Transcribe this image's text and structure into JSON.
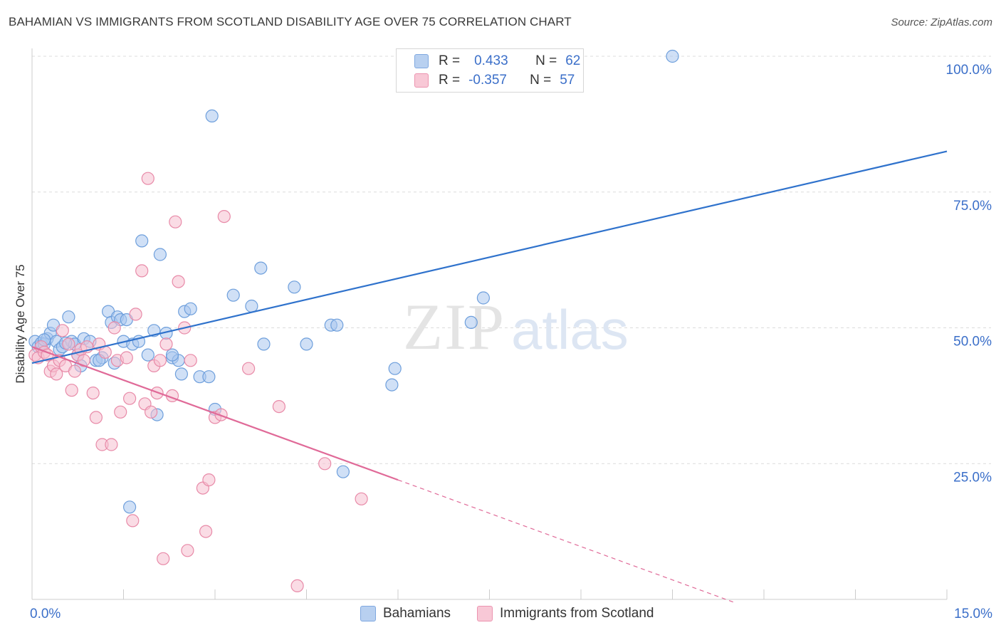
{
  "title": "BAHAMIAN VS IMMIGRANTS FROM SCOTLAND DISABILITY AGE OVER 75 CORRELATION CHART",
  "source": "Source: ZipAtlas.com",
  "watermark": {
    "zip": "ZIP",
    "atlas": "atlas"
  },
  "legend": {
    "r_label": "R =",
    "n_label": "N =",
    "rows": [
      {
        "r": "0.433",
        "n": "62",
        "fill": "#b8d0f0",
        "stroke": "#7fa8e0"
      },
      {
        "r": "-0.357",
        "n": "57",
        "fill": "#f8c8d6",
        "stroke": "#ec94b0"
      }
    ]
  },
  "colors": {
    "blue_fill": "#a9c6ee",
    "blue_stroke": "#6e9fdc",
    "blue_line": "#2f72cc",
    "pink_fill": "#f6bfd0",
    "pink_stroke": "#e88aa8",
    "pink_line": "#e06a98",
    "axis_text": "#3b6fc9",
    "grid": "#dcdcdc"
  },
  "chart_data": {
    "type": "scatter",
    "xlabel": "",
    "ylabel": "Disability Age Over 75",
    "xlim": [
      0,
      15
    ],
    "ylim": [
      0,
      100
    ],
    "x_tick_labels": [
      "0.0%",
      "15.0%"
    ],
    "y_ticks": [
      {
        "value": 25,
        "label": "25.0%"
      },
      {
        "value": 50,
        "label": "50.0%"
      },
      {
        "value": 75,
        "label": "75.0%"
      },
      {
        "value": 100,
        "label": "100.0%"
      }
    ],
    "grid": "horizontal dashed",
    "legend_position": "bottom",
    "series": [
      {
        "name": "Bahamians",
        "trend": {
          "x": [
            0,
            15
          ],
          "y": [
            43.5,
            82.5
          ],
          "dashed_extension": null
        },
        "points": [
          [
            0.05,
            47.5
          ],
          [
            0.1,
            46.5
          ],
          [
            0.15,
            47.2
          ],
          [
            0.2,
            47.0
          ],
          [
            0.25,
            48.0
          ],
          [
            0.3,
            49.0
          ],
          [
            0.35,
            50.5
          ],
          [
            0.4,
            47.5
          ],
          [
            0.45,
            46.0
          ],
          [
            0.5,
            46.5
          ],
          [
            0.6,
            52.0
          ],
          [
            0.65,
            47.5
          ],
          [
            0.7,
            47.0
          ],
          [
            0.75,
            45.0
          ],
          [
            0.8,
            43.0
          ],
          [
            0.85,
            48.0
          ],
          [
            0.95,
            47.5
          ],
          [
            1.05,
            44.0
          ],
          [
            1.15,
            44.5
          ],
          [
            1.25,
            53.0
          ],
          [
            1.3,
            51.0
          ],
          [
            1.35,
            43.5
          ],
          [
            1.4,
            52.0
          ],
          [
            1.45,
            51.5
          ],
          [
            1.5,
            47.5
          ],
          [
            1.55,
            51.5
          ],
          [
            1.6,
            17.0
          ],
          [
            1.65,
            47.0
          ],
          [
            1.75,
            47.5
          ],
          [
            1.8,
            66.0
          ],
          [
            1.9,
            45.0
          ],
          [
            2.0,
            49.5
          ],
          [
            2.05,
            34.0
          ],
          [
            2.1,
            63.5
          ],
          [
            2.2,
            49.0
          ],
          [
            2.3,
            44.5
          ],
          [
            2.4,
            44.0
          ],
          [
            2.45,
            41.5
          ],
          [
            2.5,
            53.0
          ],
          [
            2.6,
            53.5
          ],
          [
            2.75,
            41.0
          ],
          [
            2.9,
            41.0
          ],
          [
            2.95,
            89.0
          ],
          [
            3.0,
            35.0
          ],
          [
            3.3,
            56.0
          ],
          [
            3.6,
            54.0
          ],
          [
            3.75,
            61.0
          ],
          [
            3.8,
            47.0
          ],
          [
            4.3,
            57.5
          ],
          [
            4.5,
            47.0
          ],
          [
            4.9,
            50.5
          ],
          [
            5.0,
            50.5
          ],
          [
            5.1,
            23.5
          ],
          [
            5.9,
            39.5
          ],
          [
            5.95,
            42.5
          ],
          [
            7.2,
            51.0
          ],
          [
            7.4,
            55.5
          ],
          [
            10.5,
            100.0
          ],
          [
            0.2,
            47.8
          ],
          [
            0.55,
            47.2
          ],
          [
            1.1,
            44.0
          ],
          [
            2.3,
            45.0
          ]
        ]
      },
      {
        "name": "Immigrants from Scotland",
        "trend": {
          "x": [
            0,
            6
          ],
          "y": [
            46.5,
            22.0
          ],
          "dashed_extension": {
            "x": [
              6,
              11.5
            ],
            "y": [
              22.0,
              -0.5
            ]
          }
        },
        "points": [
          [
            0.05,
            45.0
          ],
          [
            0.1,
            44.5
          ],
          [
            0.15,
            46.5
          ],
          [
            0.2,
            45.5
          ],
          [
            0.25,
            45.0
          ],
          [
            0.3,
            42.0
          ],
          [
            0.35,
            43.0
          ],
          [
            0.4,
            41.5
          ],
          [
            0.45,
            44.0
          ],
          [
            0.5,
            49.5
          ],
          [
            0.55,
            43.0
          ],
          [
            0.6,
            47.0
          ],
          [
            0.65,
            38.5
          ],
          [
            0.7,
            42.0
          ],
          [
            0.75,
            45.0
          ],
          [
            0.8,
            46.0
          ],
          [
            0.85,
            44.0
          ],
          [
            0.9,
            46.5
          ],
          [
            1.0,
            38.0
          ],
          [
            1.05,
            33.5
          ],
          [
            1.1,
            47.0
          ],
          [
            1.15,
            28.5
          ],
          [
            1.2,
            45.5
          ],
          [
            1.3,
            28.5
          ],
          [
            1.35,
            50.0
          ],
          [
            1.4,
            44.0
          ],
          [
            1.45,
            34.5
          ],
          [
            1.55,
            44.5
          ],
          [
            1.6,
            37.0
          ],
          [
            1.65,
            14.5
          ],
          [
            1.7,
            52.5
          ],
          [
            1.8,
            60.5
          ],
          [
            1.85,
            36.0
          ],
          [
            1.9,
            77.5
          ],
          [
            1.95,
            34.5
          ],
          [
            2.0,
            43.0
          ],
          [
            2.05,
            38.0
          ],
          [
            2.1,
            44.0
          ],
          [
            2.15,
            7.5
          ],
          [
            2.2,
            47.0
          ],
          [
            2.3,
            37.5
          ],
          [
            2.35,
            69.5
          ],
          [
            2.4,
            58.5
          ],
          [
            2.5,
            50.0
          ],
          [
            2.55,
            9.0
          ],
          [
            2.6,
            44.0
          ],
          [
            2.8,
            20.5
          ],
          [
            2.85,
            12.5
          ],
          [
            2.9,
            22.0
          ],
          [
            3.0,
            33.5
          ],
          [
            3.1,
            34.0
          ],
          [
            3.15,
            70.5
          ],
          [
            3.55,
            42.5
          ],
          [
            4.05,
            35.5
          ],
          [
            4.35,
            2.5
          ],
          [
            4.8,
            25.0
          ],
          [
            5.4,
            18.5
          ]
        ]
      }
    ]
  },
  "bottom_legend": [
    "Bahamians",
    "Immigrants from Scotland"
  ]
}
